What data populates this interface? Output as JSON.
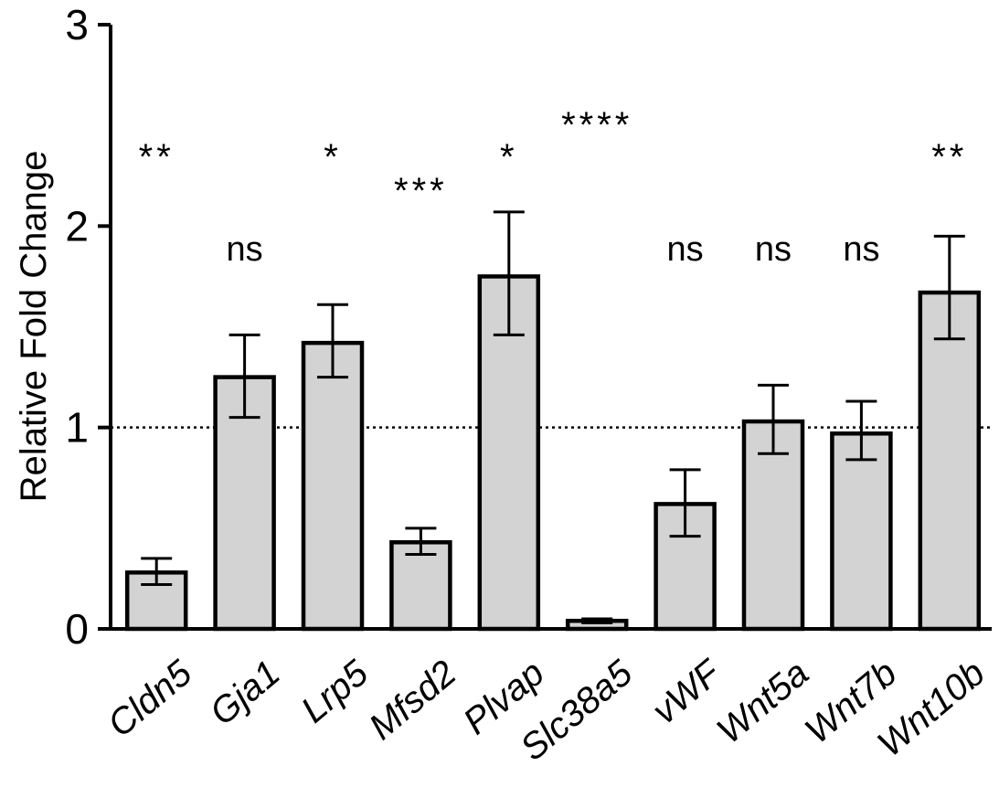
{
  "chart_data": {
    "type": "bar",
    "title": "",
    "xlabel": "",
    "ylabel": "Relative Fold Change",
    "ylim": [
      0,
      3
    ],
    "yticks": [
      0,
      1,
      2,
      3
    ],
    "ytick_labels": [
      "0",
      "1",
      "2",
      "3"
    ],
    "reference_line": 1,
    "categories": [
      "Cldn5",
      "Gja1",
      "Lrp5",
      "Mfsd2",
      "Plvap",
      "Slc38a5",
      "vWF",
      "Wnt5a",
      "Wnt7b",
      "Wnt10b"
    ],
    "values": [
      0.28,
      1.25,
      1.42,
      0.43,
      1.75,
      0.04,
      0.62,
      1.03,
      0.97,
      1.67
    ],
    "error_low": [
      0.22,
      1.05,
      1.25,
      0.37,
      1.46,
      0.03,
      0.46,
      0.87,
      0.84,
      1.44
    ],
    "error_high": [
      0.35,
      1.46,
      1.61,
      0.5,
      2.07,
      0.05,
      0.79,
      1.21,
      1.13,
      1.95
    ],
    "significance": [
      "**",
      "ns",
      "*",
      "***",
      "*",
      "****",
      "ns",
      "ns",
      "ns",
      "**"
    ],
    "bar_color": "#d3d3d3",
    "edge_color": "#000000"
  }
}
